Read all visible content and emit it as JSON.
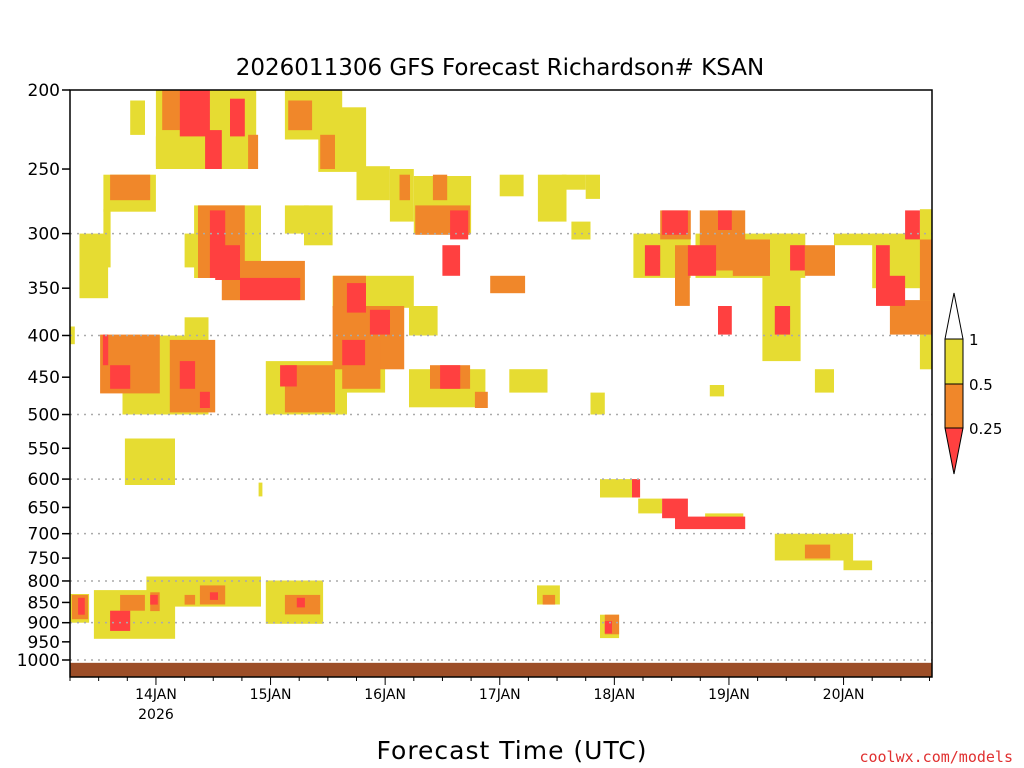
{
  "chart_data": {
    "type": "heatmap",
    "title": "2026011306 GFS Forecast Richardson# KSAN",
    "xlabel": "Forecast Time (UTC)",
    "ylabel": "",
    "credit": "coolwx.com/models",
    "x_units": "forecast hours from 2026-01-13 06Z",
    "xlim": [
      0,
      180.5
    ],
    "ylim": [
      200,
      1030
    ],
    "y_scale": "log",
    "y_ticks": [
      200,
      250,
      300,
      350,
      400,
      450,
      500,
      550,
      600,
      650,
      700,
      750,
      800,
      850,
      900,
      950,
      1000
    ],
    "y_gridlines": [
      300,
      400,
      500,
      600,
      700,
      800,
      900,
      1000
    ],
    "x_ticks": [
      {
        "hour": 18,
        "label": "14JAN",
        "sublabel": "2026"
      },
      {
        "hour": 42,
        "label": "15JAN"
      },
      {
        "hour": 66,
        "label": "16JAN"
      },
      {
        "hour": 90,
        "label": "17JAN"
      },
      {
        "hour": 114,
        "label": "18JAN"
      },
      {
        "hour": 138,
        "label": "19JAN"
      },
      {
        "hour": 162,
        "label": "20JAN"
      }
    ],
    "legend": {
      "placement": "right",
      "labels": [
        "1",
        "0.5",
        "0.25"
      ],
      "bins": [
        {
          "range": "0.5-1",
          "color": "#e6dc32"
        },
        {
          "range": "0.25-0.5",
          "color": "#f0872a"
        },
        {
          "range": "<0.25",
          "color": "#ff4040"
        }
      ]
    },
    "colors": {
      "1": "#e6dc32",
      "2": "#f0872a",
      "3": "#ff4040",
      "ground": "#9c4e28",
      "grid": "#aaaaaa"
    },
    "surface_pressure": 1008,
    "regions_format": "[hour_start, hour_end, p_top_hPa, p_bottom_hPa, category(1=0.5-1,2=0.25-0.5,3=<0.25)]",
    "regions": [
      [
        12.6,
        15.7,
        206,
        227,
        1
      ],
      [
        18,
        24,
        228,
        248,
        1
      ],
      [
        18,
        39,
        200,
        250,
        1
      ],
      [
        7,
        8.5,
        280,
        330,
        1
      ],
      [
        7,
        18,
        254,
        282,
        1
      ],
      [
        26,
        40,
        277,
        340,
        1
      ],
      [
        24,
        27,
        300,
        330,
        1
      ],
      [
        45,
        57,
        200,
        230,
        1
      ],
      [
        52,
        62,
        210,
        252,
        1
      ],
      [
        60,
        67,
        248,
        273,
        1
      ],
      [
        67,
        72,
        250,
        290,
        1
      ],
      [
        45,
        50,
        277,
        300,
        1
      ],
      [
        49,
        55,
        277,
        310,
        1
      ],
      [
        55,
        72,
        338,
        370,
        1
      ],
      [
        71,
        77,
        368,
        400,
        1
      ],
      [
        72,
        84,
        255,
        300,
        1
      ],
      [
        90,
        95,
        254,
        270,
        1
      ],
      [
        98,
        104,
        254,
        290,
        1
      ],
      [
        103,
        108,
        254,
        265,
        1
      ],
      [
        108,
        111,
        254,
        272,
        1
      ],
      [
        105,
        109,
        290,
        305,
        1
      ],
      [
        118,
        130,
        300,
        340,
        1
      ],
      [
        131,
        154,
        300,
        340,
        1
      ],
      [
        145,
        153,
        300,
        430,
        1
      ],
      [
        160,
        170,
        300,
        310,
        1
      ],
      [
        168,
        180.5,
        300,
        350,
        1
      ],
      [
        178,
        180.5,
        280,
        440,
        1
      ],
      [
        0,
        1,
        390,
        410,
        1
      ],
      [
        2,
        8,
        300,
        360,
        1
      ],
      [
        11,
        25,
        400,
        500,
        1
      ],
      [
        24,
        29,
        380,
        500,
        1
      ],
      [
        41,
        58,
        430,
        500,
        1
      ],
      [
        58,
        66,
        435,
        470,
        1
      ],
      [
        71,
        87,
        440,
        490,
        1
      ],
      [
        92,
        100,
        440,
        470,
        1
      ],
      [
        109,
        112,
        470,
        500,
        1
      ],
      [
        134,
        137,
        460,
        475,
        1
      ],
      [
        156,
        160,
        440,
        470,
        1
      ],
      [
        11.5,
        22,
        535,
        610,
        1
      ],
      [
        39.5,
        40.3,
        606,
        630,
        1
      ],
      [
        111,
        119,
        600,
        632,
        1
      ],
      [
        119,
        124,
        634,
        661,
        1
      ],
      [
        133,
        141,
        661,
        680,
        1
      ],
      [
        147.6,
        164,
        700,
        755,
        1
      ],
      [
        162,
        168,
        755,
        776,
        1
      ],
      [
        0,
        4,
        830,
        900,
        1
      ],
      [
        5,
        22,
        821,
        942,
        1
      ],
      [
        16,
        40,
        790,
        860,
        1
      ],
      [
        41,
        53,
        799,
        903,
        1
      ],
      [
        97.8,
        102.6,
        810,
        855,
        1
      ],
      [
        111,
        115,
        880,
        940,
        1
      ],
      [
        19.3,
        23,
        200,
        224,
        2
      ],
      [
        45.7,
        50.7,
        206,
        224,
        2
      ],
      [
        52.4,
        55.5,
        227,
        250,
        2
      ],
      [
        37.3,
        39.4,
        227,
        250,
        2
      ],
      [
        8.4,
        16.8,
        254,
        273,
        2
      ],
      [
        26.8,
        36.6,
        277,
        340,
        2
      ],
      [
        31.8,
        49.2,
        324,
        362,
        2
      ],
      [
        55.1,
        62,
        338,
        400,
        2
      ],
      [
        55,
        70,
        368,
        440,
        2
      ],
      [
        69,
        71.2,
        254,
        273,
        2
      ],
      [
        72.3,
        83.8,
        277,
        301,
        2
      ],
      [
        76,
        79,
        254,
        273,
        2
      ],
      [
        88,
        95.3,
        338,
        355,
        2
      ],
      [
        123.6,
        130,
        281,
        305,
        2
      ],
      [
        131.9,
        141.4,
        281,
        333,
        2
      ],
      [
        126.7,
        129.8,
        310,
        368,
        2
      ],
      [
        138.8,
        146.6,
        305,
        338,
        2
      ],
      [
        153.9,
        160.2,
        310,
        338,
        2
      ],
      [
        171.7,
        180.5,
        362,
        399,
        2
      ],
      [
        178,
        180.5,
        305,
        362,
        2
      ],
      [
        6.3,
        18.8,
        399,
        471,
        2
      ],
      [
        20.9,
        30.4,
        405,
        497,
        2
      ],
      [
        45,
        55.5,
        435,
        497,
        2
      ],
      [
        57,
        65,
        405,
        465,
        2
      ],
      [
        75.4,
        83.8,
        435,
        465,
        2
      ],
      [
        84.8,
        87.5,
        469,
        491,
        2
      ],
      [
        0.4,
        3.8,
        832,
        891,
        2
      ],
      [
        10.5,
        15.7,
        832,
        870,
        2
      ],
      [
        16.8,
        18.8,
        826,
        871,
        2
      ],
      [
        24,
        26.2,
        832,
        855,
        2
      ],
      [
        27.2,
        32.5,
        810,
        855,
        2
      ],
      [
        45,
        52.4,
        832,
        879,
        2
      ],
      [
        99,
        101.6,
        832,
        855,
        2
      ],
      [
        112,
        115,
        880,
        930,
        2
      ],
      [
        153.9,
        159.2,
        722,
        751,
        2
      ],
      [
        23,
        29.3,
        200,
        228,
        3
      ],
      [
        28.3,
        31.8,
        224,
        250,
        3
      ],
      [
        33.5,
        36.6,
        205,
        228,
        3
      ],
      [
        29.3,
        32.5,
        281,
        340,
        3
      ],
      [
        30.4,
        35.6,
        310,
        342,
        3
      ],
      [
        35.6,
        48.2,
        340,
        362,
        3
      ],
      [
        58,
        62,
        345,
        375,
        3
      ],
      [
        62.8,
        67,
        372,
        399,
        3
      ],
      [
        57,
        61.8,
        405,
        435,
        3
      ],
      [
        8.4,
        12.6,
        435,
        465,
        3
      ],
      [
        6.9,
        8,
        399,
        435,
        3
      ],
      [
        23,
        26.2,
        430,
        465,
        3
      ],
      [
        27.2,
        29.3,
        469,
        491,
        3
      ],
      [
        44,
        47.5,
        435,
        462,
        3
      ],
      [
        77.5,
        81.7,
        435,
        465,
        3
      ],
      [
        79.6,
        83.4,
        281,
        305,
        3
      ],
      [
        78,
        81.7,
        310,
        338,
        3
      ],
      [
        124,
        129.4,
        281,
        301,
        3
      ],
      [
        135.7,
        138.6,
        281,
        297,
        3
      ],
      [
        129.4,
        135.3,
        310,
        338,
        3
      ],
      [
        120.4,
        123.6,
        310,
        338,
        3
      ],
      [
        150.8,
        153.9,
        310,
        333,
        3
      ],
      [
        168.8,
        171.7,
        310,
        350,
        3
      ],
      [
        168.8,
        174.9,
        338,
        368,
        3
      ],
      [
        174.9,
        178,
        281,
        305,
        3
      ],
      [
        135.7,
        138.6,
        368,
        399,
        3
      ],
      [
        147.6,
        150.8,
        368,
        399,
        3
      ],
      [
        117.7,
        119.4,
        600,
        632,
        3
      ],
      [
        124,
        129.4,
        634,
        670,
        3
      ],
      [
        126.7,
        141.4,
        667,
        691,
        3
      ],
      [
        1.7,
        3.1,
        839,
        880,
        3
      ],
      [
        8.4,
        12.6,
        870,
        921,
        3
      ],
      [
        16.8,
        18.4,
        832,
        855,
        3
      ],
      [
        29.3,
        31,
        826,
        844,
        3
      ],
      [
        47.5,
        49.2,
        839,
        862,
        3
      ],
      [
        112,
        113.5,
        896,
        928,
        3
      ]
    ]
  }
}
